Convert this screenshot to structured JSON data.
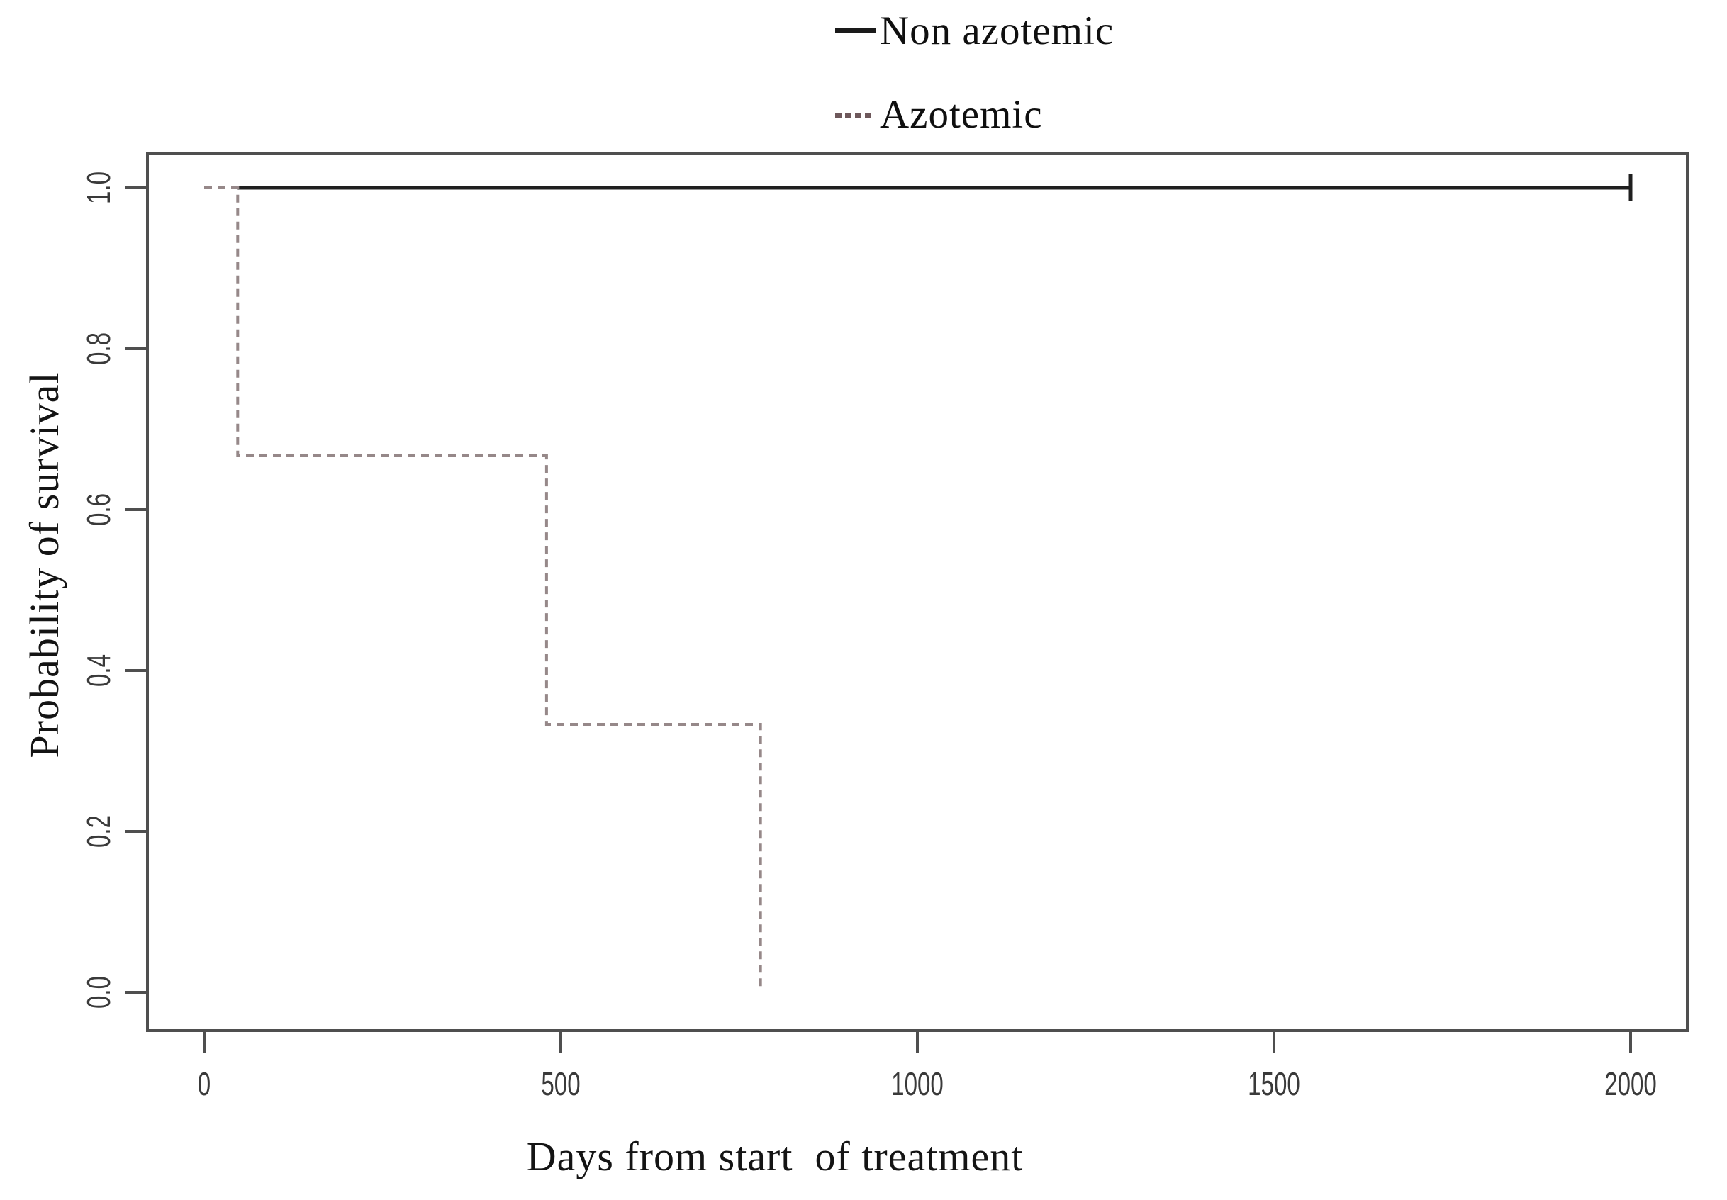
{
  "figure": {
    "background": "#ffffff",
    "axis_color": "#4f4f4f",
    "tick_label_color": "#3a3a3a"
  },
  "chart_data": {
    "type": "line",
    "subtype": "kaplan-meier-step-curve",
    "title": "",
    "xlabel": "Days from start  of treatment",
    "ylabel": "Probability of survival",
    "xlim": [
      0,
      2000
    ],
    "ylim": [
      0.0,
      1.0
    ],
    "grid": false,
    "legend_position": "top-center",
    "x_ticks": [
      {
        "v": 0,
        "label": "0"
      },
      {
        "v": 500,
        "label": "500"
      },
      {
        "v": 1000,
        "label": "1000"
      },
      {
        "v": 1500,
        "label": "1500"
      },
      {
        "v": 2000,
        "label": "2000"
      }
    ],
    "y_ticks": [
      {
        "v": 1.0,
        "label": "1.0"
      },
      {
        "v": 0.8,
        "label": "0.8"
      },
      {
        "v": 0.6,
        "label": "0.6"
      },
      {
        "v": 0.4,
        "label": "0.4"
      },
      {
        "v": 0.2,
        "label": "0.2"
      },
      {
        "v": 0.0,
        "label": "0.0"
      }
    ],
    "series": [
      {
        "name": "Non azotemic",
        "style": "solid",
        "color": "#1f1f1f",
        "swatch_color": "#1a1a1a",
        "points": [
          [
            47,
            1.0
          ],
          [
            2000,
            1.0
          ]
        ],
        "censored": [
          [
            2000,
            1.0
          ]
        ]
      },
      {
        "name": "Azotemic",
        "style": "dashed",
        "color": "#968889",
        "swatch_color": "#6e585b",
        "points": [
          [
            0,
            1.0
          ],
          [
            47,
            1.0
          ],
          [
            47,
            0.667
          ],
          [
            480,
            0.667
          ],
          [
            480,
            0.333
          ],
          [
            780,
            0.333
          ],
          [
            780,
            0.0
          ]
        ],
        "censored": []
      }
    ]
  }
}
